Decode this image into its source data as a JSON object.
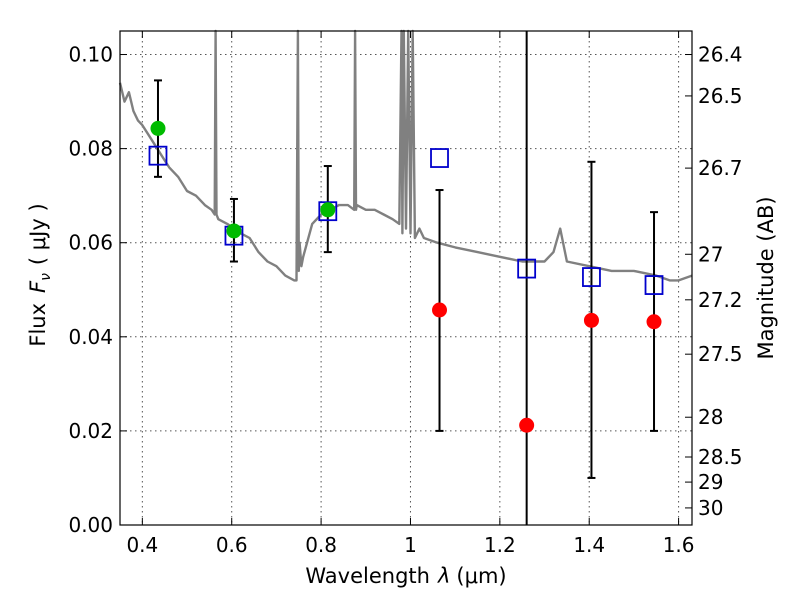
{
  "chart_data": {
    "type": "scatter",
    "xlabel_text": "Wavelength",
    "xlabel_symbol": "λ",
    "xlabel_unit": "(μm)",
    "ylabel_text": "Flux",
    "ylabel_symbol": "F",
    "ylabel_sub": "ν",
    "ylabel_unit": "( μJy )",
    "y2label": "Magnitude (AB)",
    "xlim": [
      0.35,
      1.63
    ],
    "ylim": [
      0.0,
      0.105
    ],
    "grid": true,
    "xticks": [
      0.4,
      0.6,
      0.8,
      1.0,
      1.2,
      1.4,
      1.6
    ],
    "xtick_labels": [
      "0.4",
      "0.6",
      "0.8",
      "1",
      "1.2",
      "1.4",
      "1.6"
    ],
    "yticks": [
      0.0,
      0.02,
      0.04,
      0.06,
      0.08,
      0.1
    ],
    "ytick_labels": [
      "0.00",
      "0.02",
      "0.04",
      "0.06",
      "0.08",
      "0.10"
    ],
    "mag_ticks": [
      {
        "mag": 26.4,
        "label": "26.4"
      },
      {
        "mag": 26.5,
        "label": "26.5"
      },
      {
        "mag": 26.7,
        "label": "26.7"
      },
      {
        "mag": 27.0,
        "label": "27"
      },
      {
        "mag": 27.2,
        "label": "27.2"
      },
      {
        "mag": 27.5,
        "label": "27.5"
      },
      {
        "mag": 28.0,
        "label": "28"
      },
      {
        "mag": 28.5,
        "label": "28.5"
      },
      {
        "mag": 29.0,
        "label": "29"
      },
      {
        "mag": 30.0,
        "label": "30"
      }
    ],
    "colors": {
      "model": "#808080",
      "model_points": "#0000cc",
      "detections": "#00bb00",
      "upper_limits": "#ff0000",
      "errorbars": "#000000",
      "grid": "#555555"
    },
    "model_spectrum": {
      "x": [
        0.35,
        0.36,
        0.37,
        0.38,
        0.39,
        0.4,
        0.42,
        0.44,
        0.46,
        0.48,
        0.5,
        0.52,
        0.54,
        0.555,
        0.562,
        0.564,
        0.566,
        0.57,
        0.59,
        0.62,
        0.64,
        0.66,
        0.68,
        0.7,
        0.72,
        0.74,
        0.745,
        0.748,
        0.75,
        0.752,
        0.756,
        0.76,
        0.78,
        0.8,
        0.82,
        0.84,
        0.86,
        0.874,
        0.876,
        0.878,
        0.88,
        0.9,
        0.92,
        0.94,
        0.96,
        0.975,
        0.98,
        0.982,
        0.985,
        0.99,
        0.995,
        1.0,
        1.005,
        1.01,
        1.02,
        1.03,
        1.06,
        1.1,
        1.15,
        1.2,
        1.25,
        1.3,
        1.32,
        1.335,
        1.35,
        1.4,
        1.45,
        1.5,
        1.55,
        1.58,
        1.6,
        1.63
      ],
      "y": [
        0.094,
        0.09,
        0.092,
        0.088,
        0.086,
        0.085,
        0.082,
        0.079,
        0.076,
        0.074,
        0.071,
        0.07,
        0.068,
        0.067,
        0.066,
        0.105,
        0.066,
        0.065,
        0.064,
        0.062,
        0.061,
        0.058,
        0.056,
        0.055,
        0.053,
        0.052,
        0.052,
        0.105,
        0.054,
        0.06,
        0.055,
        0.057,
        0.064,
        0.066,
        0.067,
        0.068,
        0.068,
        0.067,
        0.105,
        0.067,
        0.068,
        0.067,
        0.067,
        0.066,
        0.065,
        0.064,
        0.105,
        0.062,
        0.105,
        0.063,
        0.105,
        0.062,
        0.105,
        0.061,
        0.063,
        0.061,
        0.06,
        0.059,
        0.058,
        0.057,
        0.056,
        0.056,
        0.058,
        0.063,
        0.056,
        0.055,
        0.054,
        0.054,
        0.053,
        0.052,
        0.052,
        0.053
      ]
    },
    "series": [
      {
        "name": "model_photometry",
        "marker": "open-square",
        "points": [
          {
            "x": 0.435,
            "y": 0.0785
          },
          {
            "x": 0.605,
            "y": 0.0615
          },
          {
            "x": 0.815,
            "y": 0.0667
          },
          {
            "x": 1.065,
            "y": 0.078
          },
          {
            "x": 1.26,
            "y": 0.0545
          },
          {
            "x": 1.405,
            "y": 0.0527
          },
          {
            "x": 1.545,
            "y": 0.051
          }
        ]
      },
      {
        "name": "detections",
        "marker": "filled-circle",
        "points": [
          {
            "x": 0.435,
            "y": 0.0843,
            "err": [
              0.074,
              0.0945
            ]
          },
          {
            "x": 0.605,
            "y": 0.0625,
            "err": [
              0.056,
              0.0693
            ]
          },
          {
            "x": 0.815,
            "y": 0.067,
            "err": [
              0.058,
              0.0763
            ]
          }
        ]
      },
      {
        "name": "upper_limits",
        "marker": "filled-circle",
        "points": [
          {
            "x": 1.065,
            "y": 0.0457,
            "err": [
              0.02,
              0.0712
            ]
          },
          {
            "x": 1.26,
            "y": 0.0212,
            "err": [
              0.0,
              0.105
            ]
          },
          {
            "x": 1.405,
            "y": 0.0435,
            "err": [
              0.01,
              0.0772
            ]
          },
          {
            "x": 1.545,
            "y": 0.0432,
            "err": [
              0.02,
              0.0665
            ]
          }
        ]
      }
    ]
  }
}
